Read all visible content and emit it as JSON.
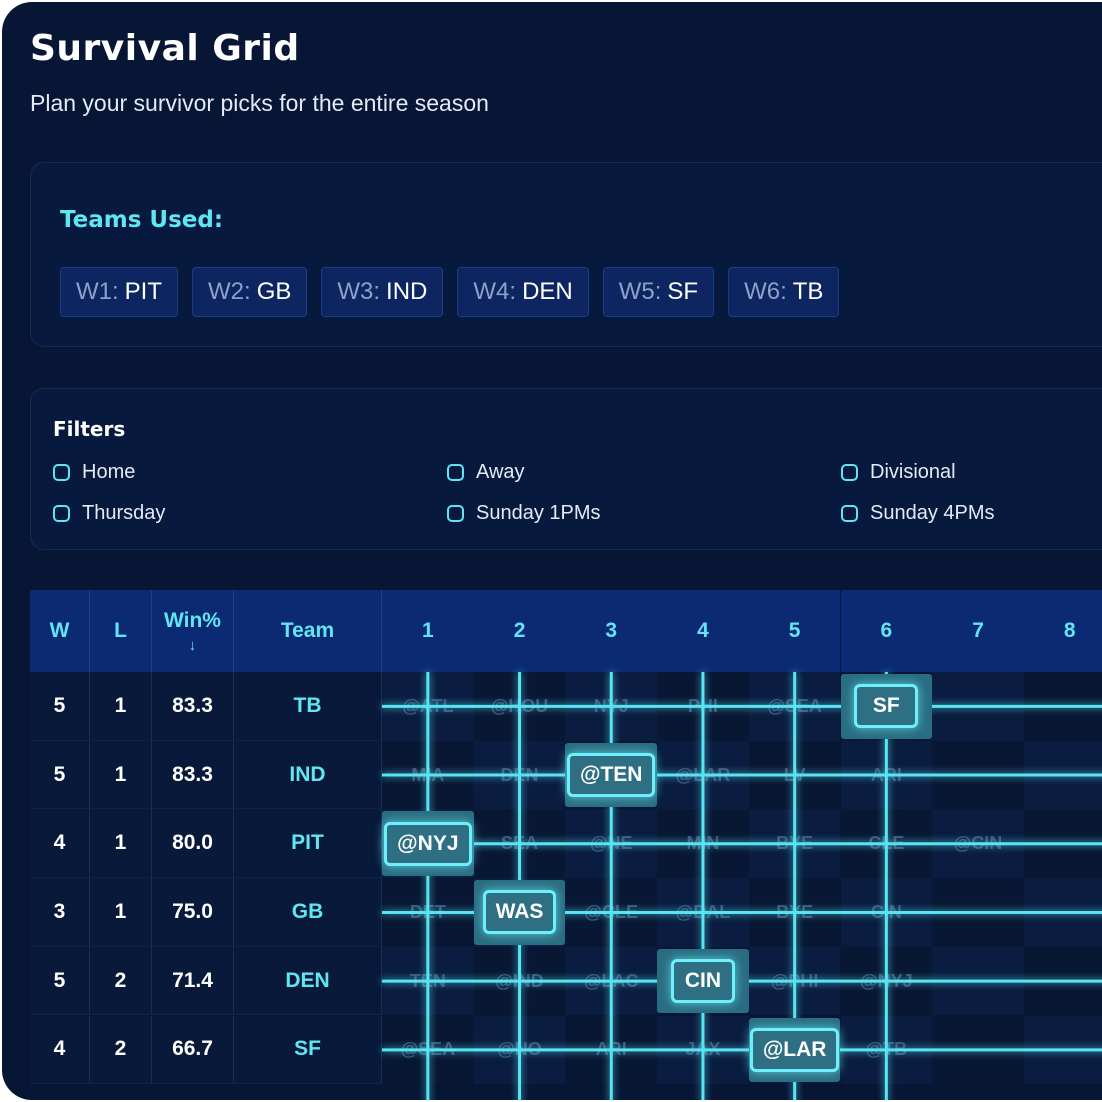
{
  "title": "Survival Grid",
  "subtitle": "Plan your survivor picks for the entire season",
  "teams_used": {
    "label": "Teams Used:",
    "chips": [
      {
        "week": "W1:",
        "team": "PIT"
      },
      {
        "week": "W2:",
        "team": "GB"
      },
      {
        "week": "W3:",
        "team": "IND"
      },
      {
        "week": "W4:",
        "team": "DEN"
      },
      {
        "week": "W5:",
        "team": "SF"
      },
      {
        "week": "W6:",
        "team": "TB"
      }
    ]
  },
  "filters": {
    "label": "Filters",
    "options": [
      "Home",
      "Away",
      "Divisional",
      "Thursday",
      "Sunday 1PMs",
      "Sunday 4PMs"
    ]
  },
  "grid": {
    "headers": {
      "w": "W",
      "l": "L",
      "win": "Win%",
      "win_sort_icon": "arrow-down-icon",
      "team": "Team",
      "weeks": [
        "1",
        "2",
        "3",
        "4",
        "5",
        "6",
        "7",
        "8"
      ]
    },
    "rows": [
      {
        "w": "5",
        "l": "1",
        "win": "83.3",
        "team": "TB",
        "games": [
          "@ATL",
          "@HOU",
          "NYJ",
          "PHI",
          "@SEA",
          "SF",
          "",
          ""
        ],
        "pick_week": 6
      },
      {
        "w": "5",
        "l": "1",
        "win": "83.3",
        "team": "IND",
        "games": [
          "MIA",
          "DEN",
          "@TEN",
          "@LAR",
          "LV",
          "ARI",
          "",
          ""
        ],
        "pick_week": 3
      },
      {
        "w": "4",
        "l": "1",
        "win": "80.0",
        "team": "PIT",
        "games": [
          "@NYJ",
          "SEA",
          "@NE",
          "MIN",
          "BYE",
          "CLE",
          "@CIN",
          ""
        ],
        "pick_week": 1
      },
      {
        "w": "3",
        "l": "1",
        "win": "75.0",
        "team": "GB",
        "games": [
          "DET",
          "WAS",
          "@CLE",
          "@DAL",
          "BYE",
          "CIN",
          "",
          ""
        ],
        "pick_week": 2
      },
      {
        "w": "5",
        "l": "2",
        "win": "71.4",
        "team": "DEN",
        "games": [
          "TEN",
          "@IND",
          "@LAC",
          "CIN",
          "@PHI",
          "@NYJ",
          "",
          ""
        ],
        "pick_week": 4
      },
      {
        "w": "4",
        "l": "2",
        "win": "66.7",
        "team": "SF",
        "games": [
          "@SEA",
          "@NO",
          "ARI",
          "JAX",
          "@LAR",
          "@TB",
          "",
          ""
        ],
        "pick_week": 5
      }
    ]
  },
  "colors": {
    "accent": "#5fe6f2",
    "background": "#061634",
    "header": "#0c2a74"
  }
}
